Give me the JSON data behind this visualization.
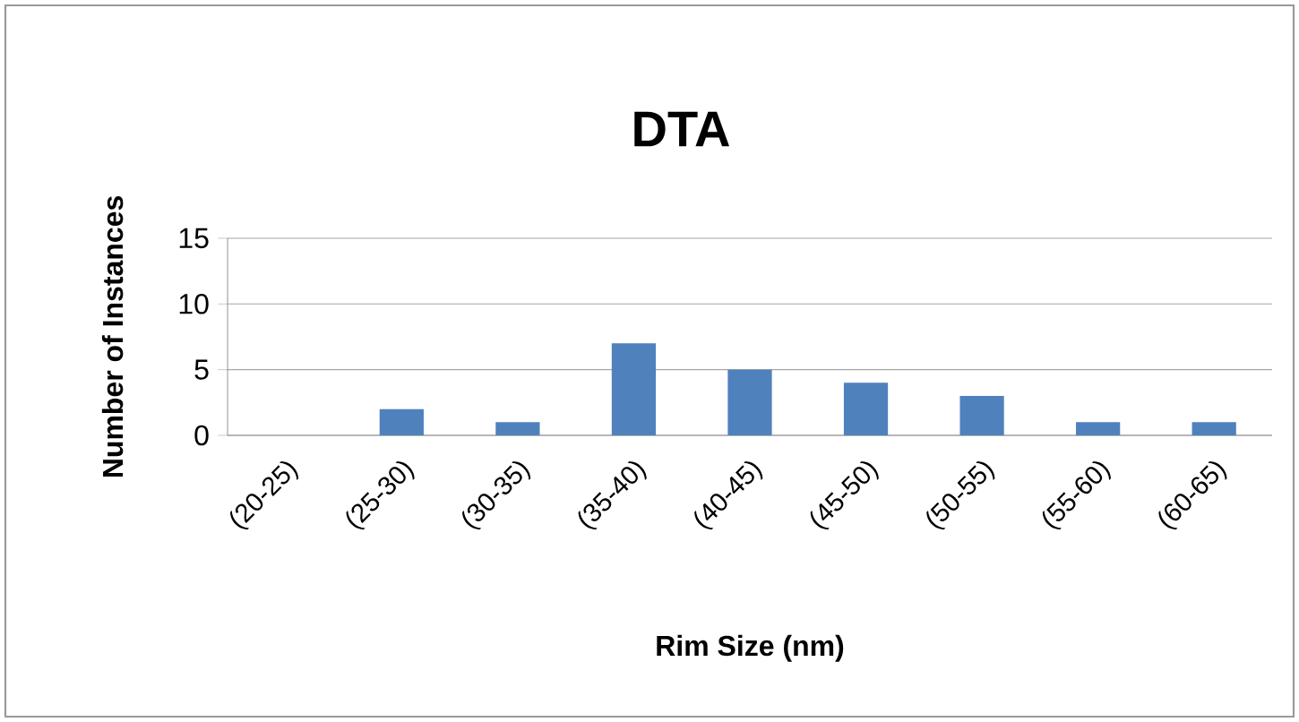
{
  "chart_data": {
    "type": "bar",
    "title": "DTA",
    "xlabel": "Rim Size (nm)",
    "ylabel": "Number of Instances",
    "categories": [
      "(20-25)",
      "(25-30)",
      "(30-35)",
      "(35-40)",
      "(40-45)",
      "(45-50)",
      "(50-55)",
      "(55-60)",
      "(60-65)"
    ],
    "values": [
      0,
      2,
      1,
      7,
      5,
      4,
      3,
      1,
      1
    ],
    "color": "#4f81bd",
    "ylim": [
      0,
      15
    ],
    "yticks": [
      0,
      5,
      10,
      15
    ],
    "grid": "y"
  }
}
